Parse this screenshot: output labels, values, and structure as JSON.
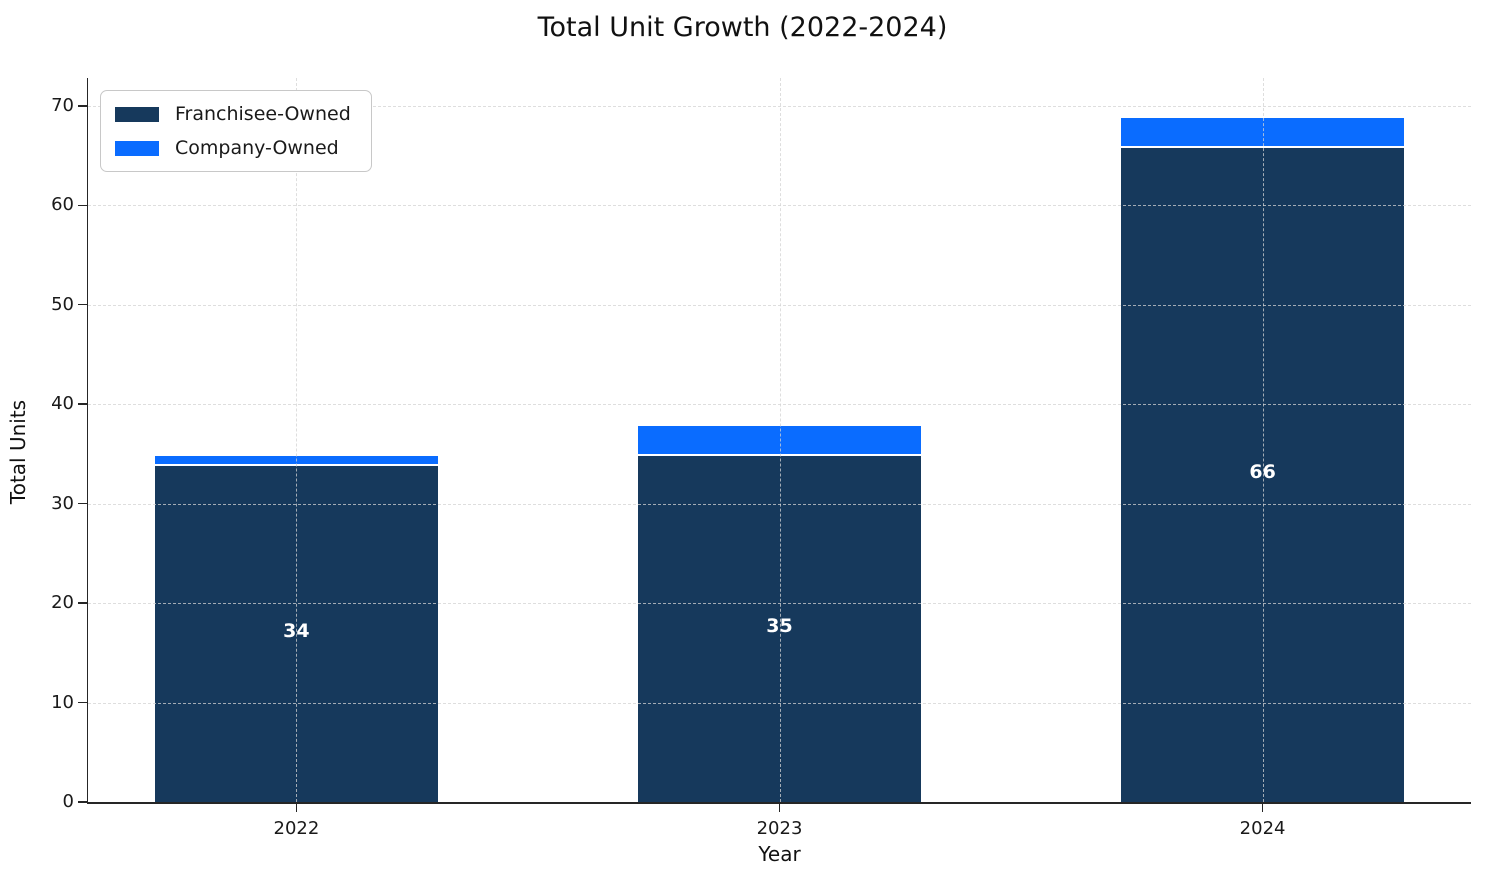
{
  "chart_data": {
    "type": "bar",
    "stacked": true,
    "title": "Total Unit Growth (2022-2024)",
    "xlabel": "Year",
    "ylabel": "Total Units",
    "categories": [
      "2022",
      "2023",
      "2024"
    ],
    "series": [
      {
        "name": "Franchisee-Owned",
        "color": "#16395C",
        "values": [
          34,
          35,
          66
        ]
      },
      {
        "name": "Company-Owned",
        "color": "#0A6CFF",
        "values": [
          1,
          3,
          3
        ]
      }
    ],
    "bar_value_labels": [
      "34",
      "35",
      "66"
    ],
    "yticks": [
      0,
      10,
      20,
      30,
      40,
      50,
      60,
      70
    ],
    "ylim": [
      0,
      72.8
    ],
    "grid": "dashed-both-axes-over-bars",
    "legend_position": "upper left",
    "bar_edge_color": "#ffffff",
    "gridline_color": "#d3d3d3",
    "axis_color": "#262626"
  }
}
